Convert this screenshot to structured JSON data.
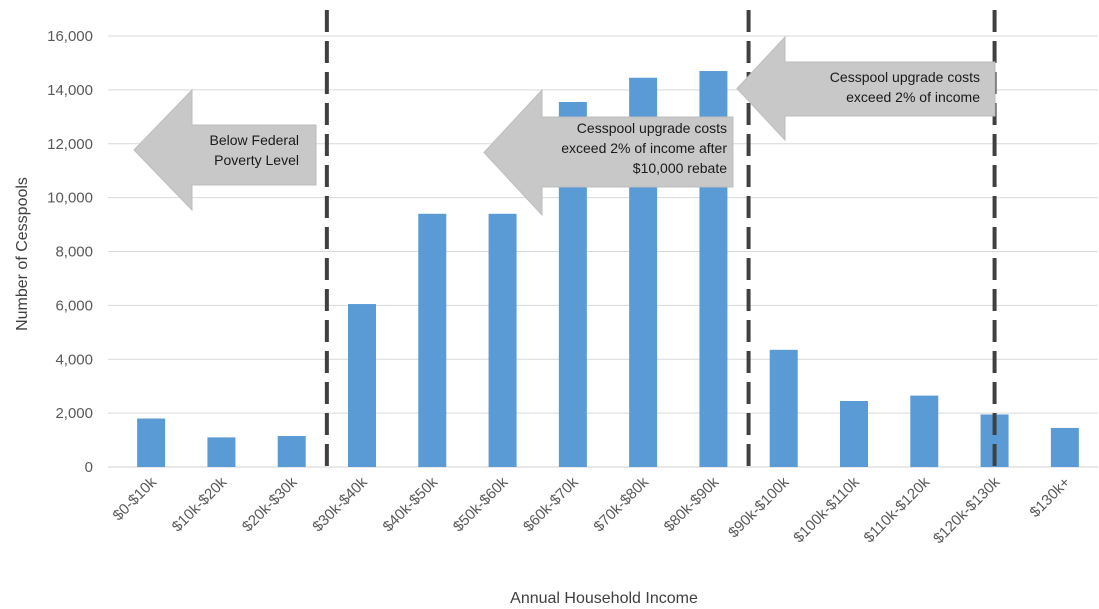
{
  "chart_data": {
    "type": "bar",
    "title": "",
    "xlabel": "Annual Household Income",
    "ylabel": "Number of Cesspools",
    "ylim": [
      0,
      16000
    ],
    "yticks": [
      0,
      2000,
      4000,
      6000,
      8000,
      10000,
      12000,
      14000,
      16000
    ],
    "ytick_labels": [
      "0",
      "2,000",
      "4,000",
      "6,000",
      "8,000",
      "10,000",
      "12,000",
      "14,000",
      "16,000"
    ],
    "grid": true,
    "bar_color": "#5b9bd5",
    "categories": [
      "$0-$10k",
      "$10k-$20k",
      "$20k-$30k",
      "$30k-$40k",
      "$40k-$50k",
      "$50k-$60k",
      "$60k-$70k",
      "$70k-$80k",
      "$80k-$90k",
      "$90k-$100k",
      "$100k-$110k",
      "$110k-$120k",
      "$120k-$130k",
      "$130k+"
    ],
    "values": [
      1800,
      1100,
      1150,
      6050,
      9400,
      9400,
      13550,
      14450,
      14700,
      4350,
      2450,
      2650,
      1950,
      1450
    ],
    "thresholds": [
      {
        "name": "poverty-line",
        "after_category": "$20k-$30k"
      },
      {
        "name": "two-percent-line",
        "after_category": "$80k-$90k"
      },
      {
        "name": "upper-line",
        "at_category": "$120k-$130k"
      }
    ],
    "annotations": [
      {
        "id": "poverty",
        "direction": "left",
        "lines": [
          "Below Federal",
          "Poverty Level"
        ]
      },
      {
        "id": "rebate",
        "direction": "left",
        "lines": [
          "Cesspool upgrade costs",
          "exceed 2% of income after",
          "$10,000 rebate"
        ]
      },
      {
        "id": "twopct",
        "direction": "left",
        "lines": [
          "Cesspool upgrade costs",
          "exceed 2% of income"
        ]
      }
    ]
  }
}
